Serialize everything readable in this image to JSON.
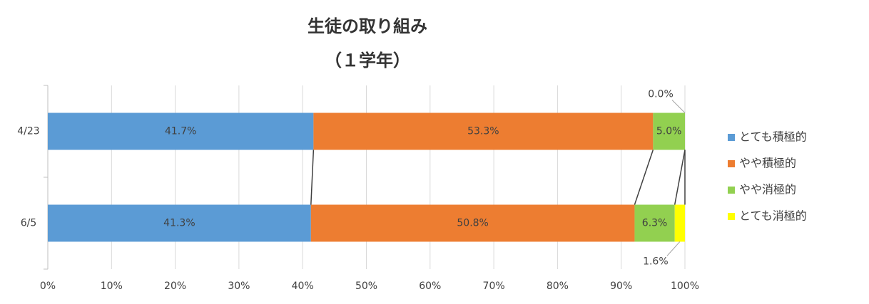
{
  "chart_data": {
    "type": "stacked_bar_horizontal",
    "title": "生徒の取り組み",
    "subtitle": "（１学年）",
    "categories": [
      "4/23",
      "6/5"
    ],
    "series": [
      {
        "name": "とても積極的",
        "color": "#5b9bd5",
        "values": [
          41.7,
          41.3
        ],
        "value_labels": [
          "41.7%",
          "41.3%"
        ]
      },
      {
        "name": "やや積極的",
        "color": "#ed7d31",
        "values": [
          53.3,
          50.8
        ],
        "value_labels": [
          "53.3%",
          "50.8%"
        ]
      },
      {
        "name": "やや消極的",
        "color": "#92d050",
        "values": [
          5.0,
          6.3
        ],
        "value_labels": [
          "5.0%",
          "6.3%"
        ]
      },
      {
        "name": "とても消極的",
        "color": "#ffff00",
        "values": [
          0.0,
          1.6
        ],
        "value_labels": [
          "0.0%",
          "1.6%"
        ]
      }
    ],
    "xlim": [
      0,
      100
    ],
    "xticks": [
      {
        "value": 0,
        "label": "0%"
      },
      {
        "value": 10,
        "label": "10%"
      },
      {
        "value": 20,
        "label": "20%"
      },
      {
        "value": 30,
        "label": "30%"
      },
      {
        "value": 40,
        "label": "40%"
      },
      {
        "value": 50,
        "label": "50%"
      },
      {
        "value": 60,
        "label": "60%"
      },
      {
        "value": 70,
        "label": "70%"
      },
      {
        "value": 80,
        "label": "80%"
      },
      {
        "value": 90,
        "label": "90%"
      },
      {
        "value": 100,
        "label": "100%"
      }
    ],
    "grid": true,
    "legend": "right"
  }
}
